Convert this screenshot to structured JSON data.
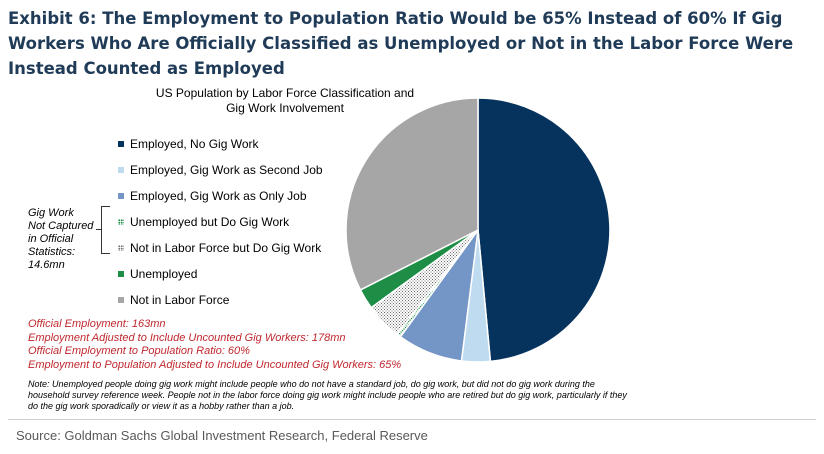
{
  "title": "Exhibit 6: The Employment to Population Ratio Would be 65% Instead of 60% If Gig Workers Who Are Officially Classified as Unemployed or Not in the Labor Force Were Instead Counted as Employed",
  "colors": {
    "navy": "#06335d",
    "light_blue": "#bfdbf0",
    "mid_blue": "#7396c6",
    "green": "#1e8e47",
    "gray": "#a6a6a6",
    "stats_red": "#c0272d"
  },
  "chart_data": {
    "type": "pie",
    "title": "US Population  by Labor Force Classification and Gig Work Involvement",
    "start_angle_deg": 0,
    "direction": "clockwise",
    "slices": [
      {
        "label": "Employed, No Gig Work",
        "value": 48.5,
        "color": "#06335d",
        "pattern": "solid",
        "marker": "square"
      },
      {
        "label": "Employed, Gig Work as Second Job",
        "value": 3.5,
        "color": "#bfdbf0",
        "pattern": "solid",
        "marker": "square"
      },
      {
        "label": "Employed, Gig Work as Only Job",
        "value": 8.0,
        "color": "#7396c6",
        "pattern": "solid",
        "marker": "square"
      },
      {
        "label": "Unemployed but Do Gig Work",
        "value": 0.5,
        "color": "#1e8e47",
        "pattern": "dotted",
        "marker": "dots"
      },
      {
        "label": "Not in Labor Force but Do Gig Work",
        "value": 4.5,
        "color": "#777777",
        "pattern": "dotted",
        "marker": "dots"
      },
      {
        "label": "Unemployed",
        "value": 2.5,
        "color": "#1e8e47",
        "pattern": "solid",
        "marker": "square"
      },
      {
        "label": "Not in Labor Force",
        "value": 32.5,
        "color": "#a6a6a6",
        "pattern": "solid",
        "marker": "square"
      }
    ],
    "bracket_annotation": {
      "lines": [
        "Gig Work",
        "Not Captured",
        "in Official",
        "Statistics:",
        "14.6mn"
      ],
      "applies_to": [
        "Unemployed but Do Gig Work",
        "Not in Labor Force but Do Gig Work"
      ]
    }
  },
  "stats": [
    "Official Employment: 163mn",
    "Employment Adjusted to Include Uncounted Gig Workers: 178mn",
    "Official Employment to Population Ratio: 60%",
    "Employment to Population Adjusted to Include Uncounted Gig Workers: 65%"
  ],
  "note": "Note: Unemployed people doing gig work might include people who do not have a standard job, do gig work, but did not do gig work during the household survey reference week. People not in the labor force doing gig work might include people who  are retired but do gig work, particularly if they do the gig work sporadically or view it as a hobby rather than a job.",
  "source": "Source: Goldman Sachs Global Investment Research, Federal Reserve"
}
